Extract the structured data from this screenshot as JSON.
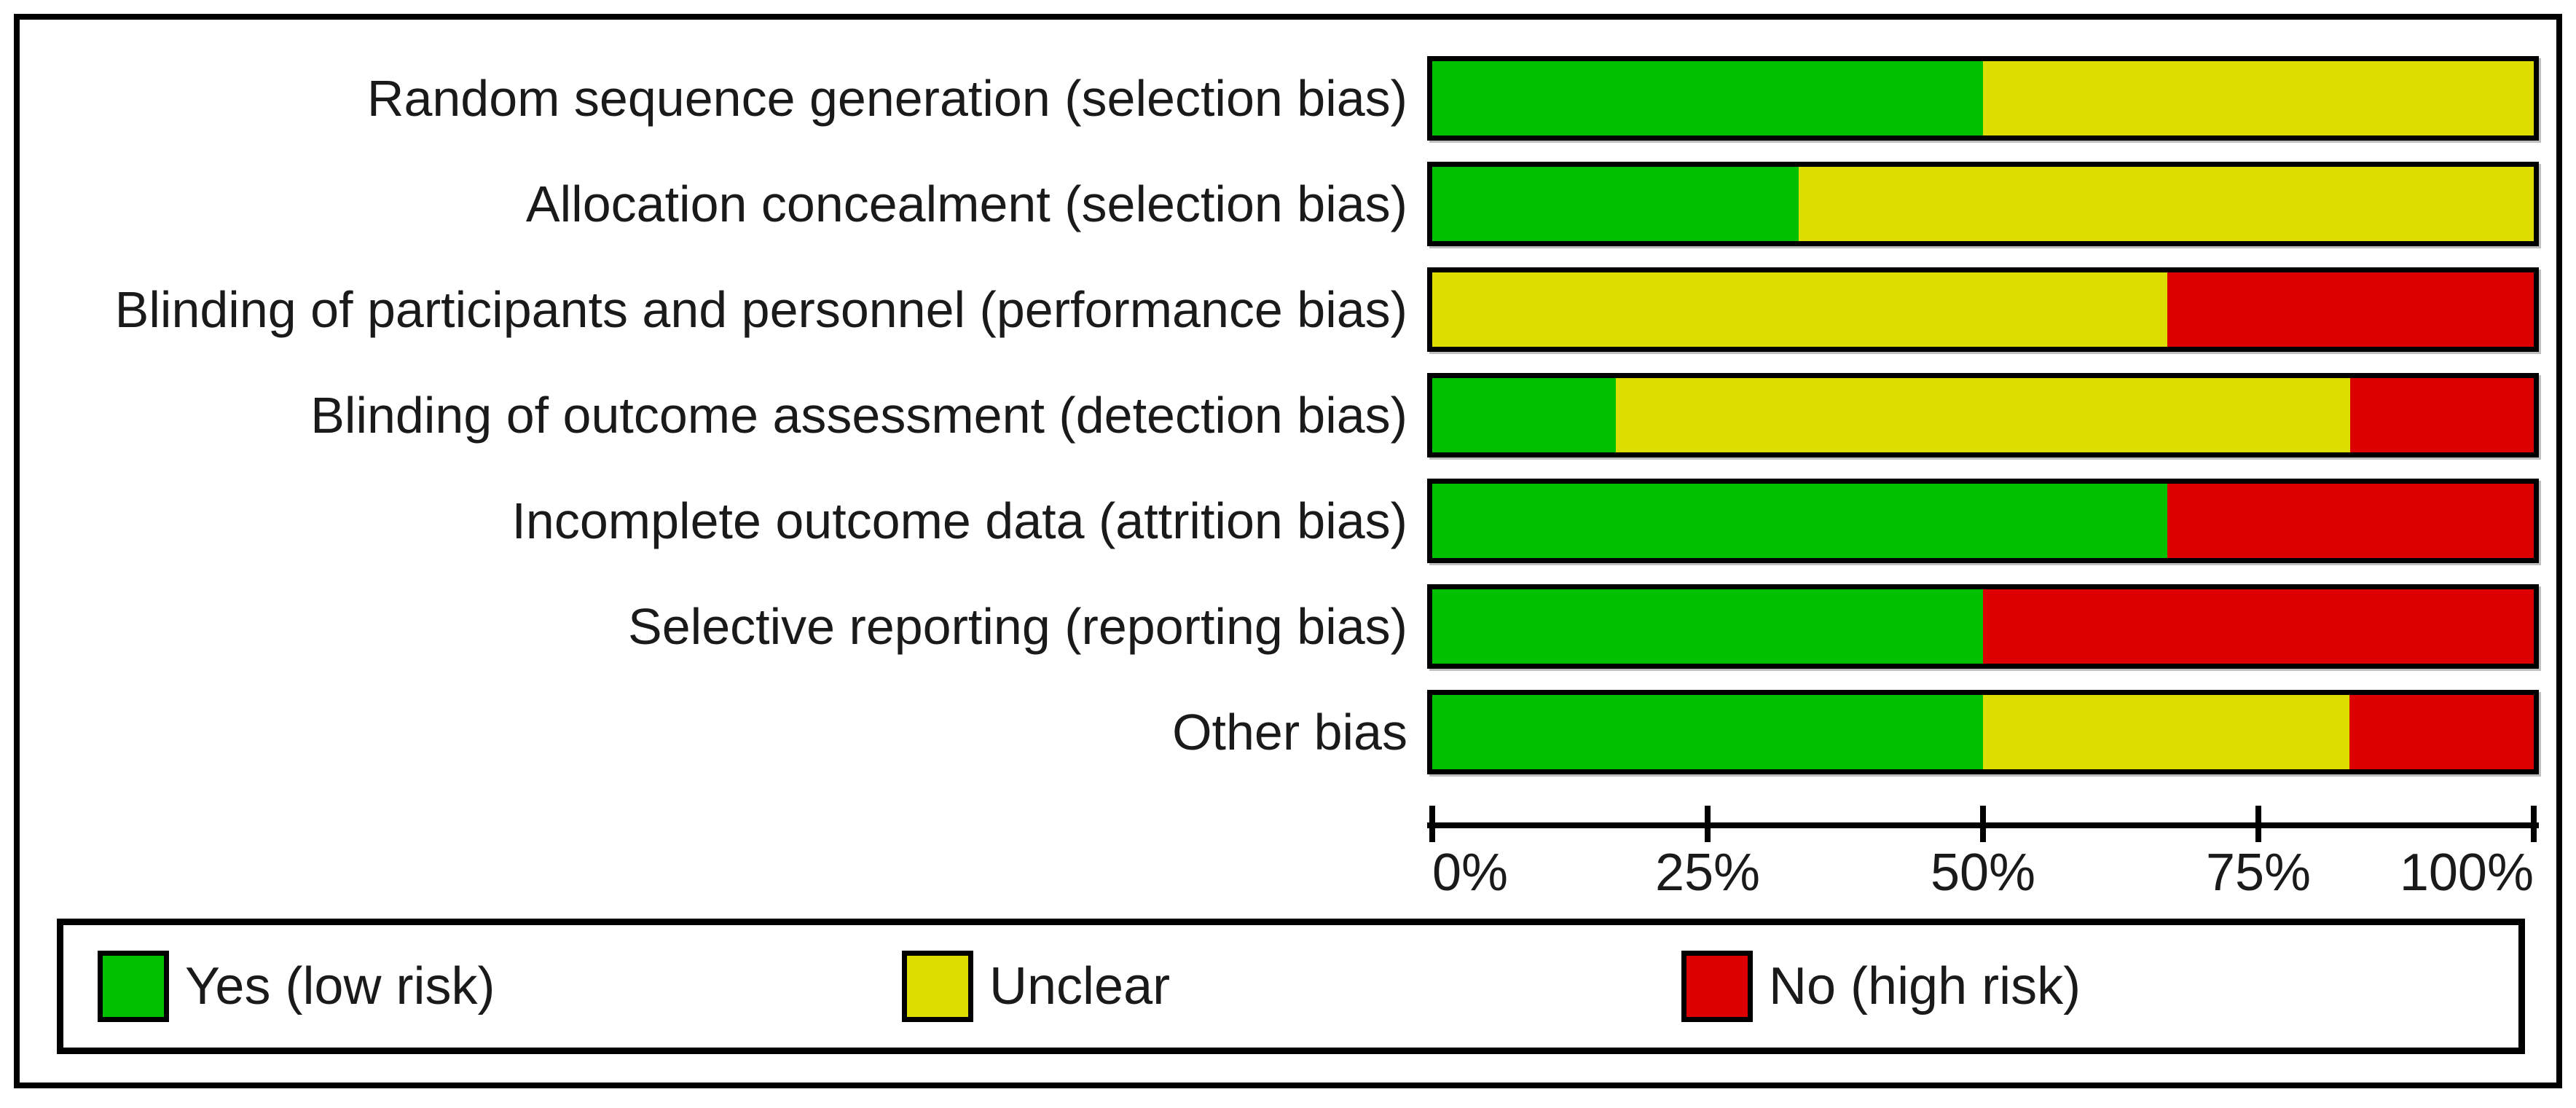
{
  "chart_data": {
    "type": "bar",
    "subtype": "stacked-horizontal",
    "title": "",
    "categories": [
      "Random sequence generation (selection bias)",
      "Allocation concealment (selection bias)",
      "Blinding of participants and personnel (performance bias)",
      "Blinding of outcome assessment (detection bias)",
      "Incomplete outcome data (attrition bias)",
      "Selective reporting (reporting bias)",
      "Other bias"
    ],
    "series": [
      {
        "name": "Yes (low risk)",
        "color": "#00C000",
        "values": [
          50,
          33.3,
          0,
          16.7,
          66.7,
          50,
          50
        ]
      },
      {
        "name": "Unclear",
        "color": "#DDDD00",
        "values": [
          50,
          66.7,
          66.7,
          66.7,
          0,
          0,
          33.3
        ]
      },
      {
        "name": "No (high risk)",
        "color": "#DD0000",
        "values": [
          0,
          0,
          33.3,
          16.7,
          33.3,
          50,
          16.7
        ]
      }
    ],
    "x_axis": {
      "range": [
        0,
        100
      ],
      "tick_values": [
        0,
        25,
        50,
        75,
        100
      ],
      "tick_labels": [
        "0%",
        "25%",
        "50%",
        "75%",
        "100%"
      ],
      "grid": false
    },
    "legend": {
      "position": "bottom",
      "entries": [
        "Yes (low risk)",
        "Unclear",
        "No (high risk)"
      ]
    },
    "style": {
      "bar_border_color": "#000000",
      "frame_border_color": "#000000",
      "background": "#ffffff",
      "text_color": "#1a1a1a"
    }
  }
}
